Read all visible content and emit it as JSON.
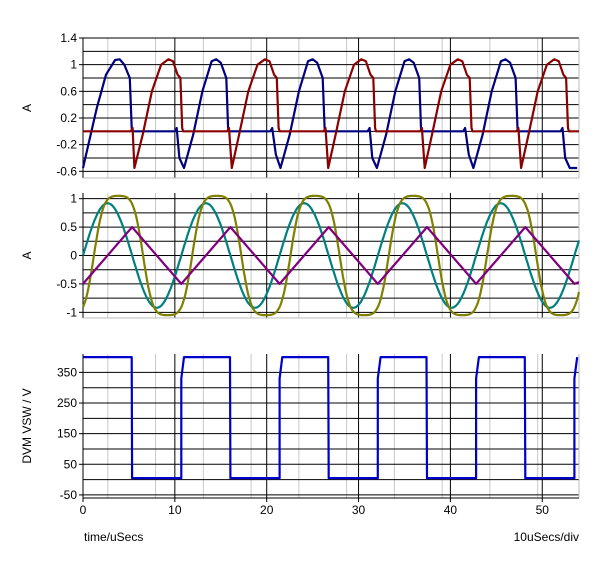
{
  "footer": {
    "xlabel": "time/uSecs",
    "xdiv": "10uSecs/div"
  },
  "chart_data": [
    {
      "type": "line",
      "ylabel": "A",
      "xlim": [
        0,
        54
      ],
      "ylim": [
        -0.7,
        1.4
      ],
      "yticks": [
        1.4,
        1,
        0.6,
        0.2,
        -0.2,
        -0.6
      ],
      "grid": true,
      "series": [
        {
          "color": "#000080",
          "x": [
            0,
            0.5,
            1.5,
            2.5,
            3.5,
            4.0,
            4.5,
            5.1,
            5.3,
            5.4,
            10.0,
            10.2,
            10.5,
            11.0,
            12.0,
            13.0,
            14.0,
            14.5,
            15.0,
            15.6,
            15.8,
            15.9,
            20.4,
            20.6,
            21.0,
            21.5,
            22.5,
            23.5,
            24.5,
            25.0,
            25.5,
            26.1,
            26.3,
            26.4,
            31.0,
            31.2,
            31.5,
            32.0,
            33.0,
            34.0,
            35.0,
            35.5,
            36.0,
            36.6,
            36.8,
            36.9,
            41.4,
            41.6,
            42.0,
            42.5,
            43.5,
            44.5,
            45.5,
            46.0,
            46.5,
            47.1,
            47.3,
            47.4,
            52.0,
            52.2,
            52.5,
            53.0,
            53.8
          ],
          "y": [
            -0.55,
            -0.25,
            0.35,
            0.85,
            1.07,
            1.08,
            1.0,
            0.8,
            0.05,
            0.0,
            0.0,
            0.05,
            -0.4,
            -0.55,
            -0.05,
            0.6,
            1.05,
            1.08,
            1.03,
            0.8,
            0.05,
            0.0,
            0.0,
            0.05,
            -0.35,
            -0.55,
            -0.05,
            0.6,
            1.05,
            1.08,
            1.03,
            0.8,
            0.05,
            0.0,
            0.0,
            0.05,
            -0.4,
            -0.55,
            -0.05,
            0.6,
            1.05,
            1.08,
            1.03,
            0.8,
            0.05,
            0.0,
            0.0,
            0.05,
            -0.35,
            -0.55,
            -0.05,
            0.6,
            1.05,
            1.08,
            1.03,
            0.8,
            0.05,
            0.0,
            0.0,
            0.05,
            -0.4,
            -0.55,
            -0.55
          ]
        },
        {
          "color": "#8b0000",
          "x": [
            0,
            5.2,
            5.4,
            5.6,
            6.5,
            7.5,
            8.5,
            9.3,
            9.8,
            10.3,
            10.6,
            10.8,
            10.9,
            15.7,
            15.9,
            16.2,
            17.0,
            18.0,
            19.0,
            19.8,
            20.3,
            20.8,
            21.1,
            21.3,
            21.4,
            26.2,
            26.4,
            26.7,
            27.5,
            28.5,
            29.5,
            30.3,
            30.8,
            31.3,
            31.6,
            31.8,
            31.9,
            36.7,
            36.9,
            37.2,
            38.0,
            39.0,
            40.0,
            40.8,
            41.3,
            41.8,
            42.1,
            42.3,
            42.4,
            47.2,
            47.4,
            47.7,
            48.5,
            49.5,
            50.5,
            51.3,
            51.8,
            52.3,
            52.6,
            52.8,
            52.9,
            54
          ],
          "y": [
            0.0,
            0.0,
            0.05,
            -0.55,
            -0.05,
            0.6,
            1.0,
            1.08,
            1.05,
            0.85,
            0.8,
            0.05,
            0.0,
            0.0,
            0.05,
            -0.55,
            -0.05,
            0.6,
            1.0,
            1.08,
            1.05,
            0.85,
            0.8,
            0.05,
            0.0,
            0.0,
            0.05,
            -0.55,
            -0.05,
            0.6,
            1.0,
            1.08,
            1.05,
            0.85,
            0.8,
            0.05,
            0.0,
            0.0,
            0.05,
            -0.55,
            -0.05,
            0.6,
            1.0,
            1.08,
            1.05,
            0.85,
            0.8,
            0.05,
            0.0,
            0.0,
            0.05,
            -0.55,
            -0.05,
            0.6,
            1.0,
            1.08,
            1.05,
            0.85,
            0.8,
            0.05,
            0.0,
            0.0
          ]
        }
      ]
    },
    {
      "type": "line",
      "ylabel": "A",
      "xlim": [
        0,
        54
      ],
      "ylim": [
        -1.1,
        1.1
      ],
      "yticks": [
        1,
        0.5,
        0,
        -0.5,
        -1
      ],
      "grid": true,
      "series": [
        {
          "color": "#008080",
          "kind": "sine",
          "amplitude": 0.92,
          "period": 10.7,
          "phase_deg": 0,
          "offset": 0
        },
        {
          "color": "#808000",
          "kind": "sine-distorted",
          "amplitude": 1.05,
          "period": 10.7,
          "phase_deg": -40,
          "offset": 0
        },
        {
          "color": "#800080",
          "kind": "triangle",
          "x": [
            0,
            5.35,
            10.7,
            16.05,
            21.4,
            26.75,
            32.1,
            37.45,
            42.8,
            48.15,
            53.5,
            54
          ],
          "y": [
            -0.5,
            0.5,
            -0.5,
            0.5,
            -0.5,
            0.5,
            -0.5,
            0.5,
            -0.5,
            0.5,
            -0.5,
            -0.47
          ]
        }
      ]
    },
    {
      "type": "line",
      "ylabel": "DVM VSW / V",
      "xlim": [
        0,
        54
      ],
      "ylim": [
        -60,
        410
      ],
      "yticks": [
        350,
        250,
        150,
        50,
        -50
      ],
      "grid": true,
      "series": [
        {
          "color": "#0000cd",
          "x": [
            0,
            5.3,
            5.35,
            10.7,
            10.7,
            11.0,
            16.0,
            16.05,
            21.4,
            21.4,
            21.7,
            26.7,
            26.75,
            32.1,
            32.1,
            32.4,
            37.4,
            37.45,
            42.8,
            42.8,
            43.1,
            48.1,
            48.15,
            53.5,
            53.5,
            53.8
          ],
          "y": [
            400,
            400,
            5,
            5,
            330,
            400,
            400,
            5,
            5,
            330,
            400,
            400,
            5,
            5,
            330,
            400,
            400,
            5,
            5,
            330,
            400,
            400,
            5,
            5,
            330,
            400
          ]
        }
      ]
    }
  ],
  "xaxis": {
    "ticks": [
      0,
      10,
      20,
      30,
      40,
      50
    ]
  }
}
